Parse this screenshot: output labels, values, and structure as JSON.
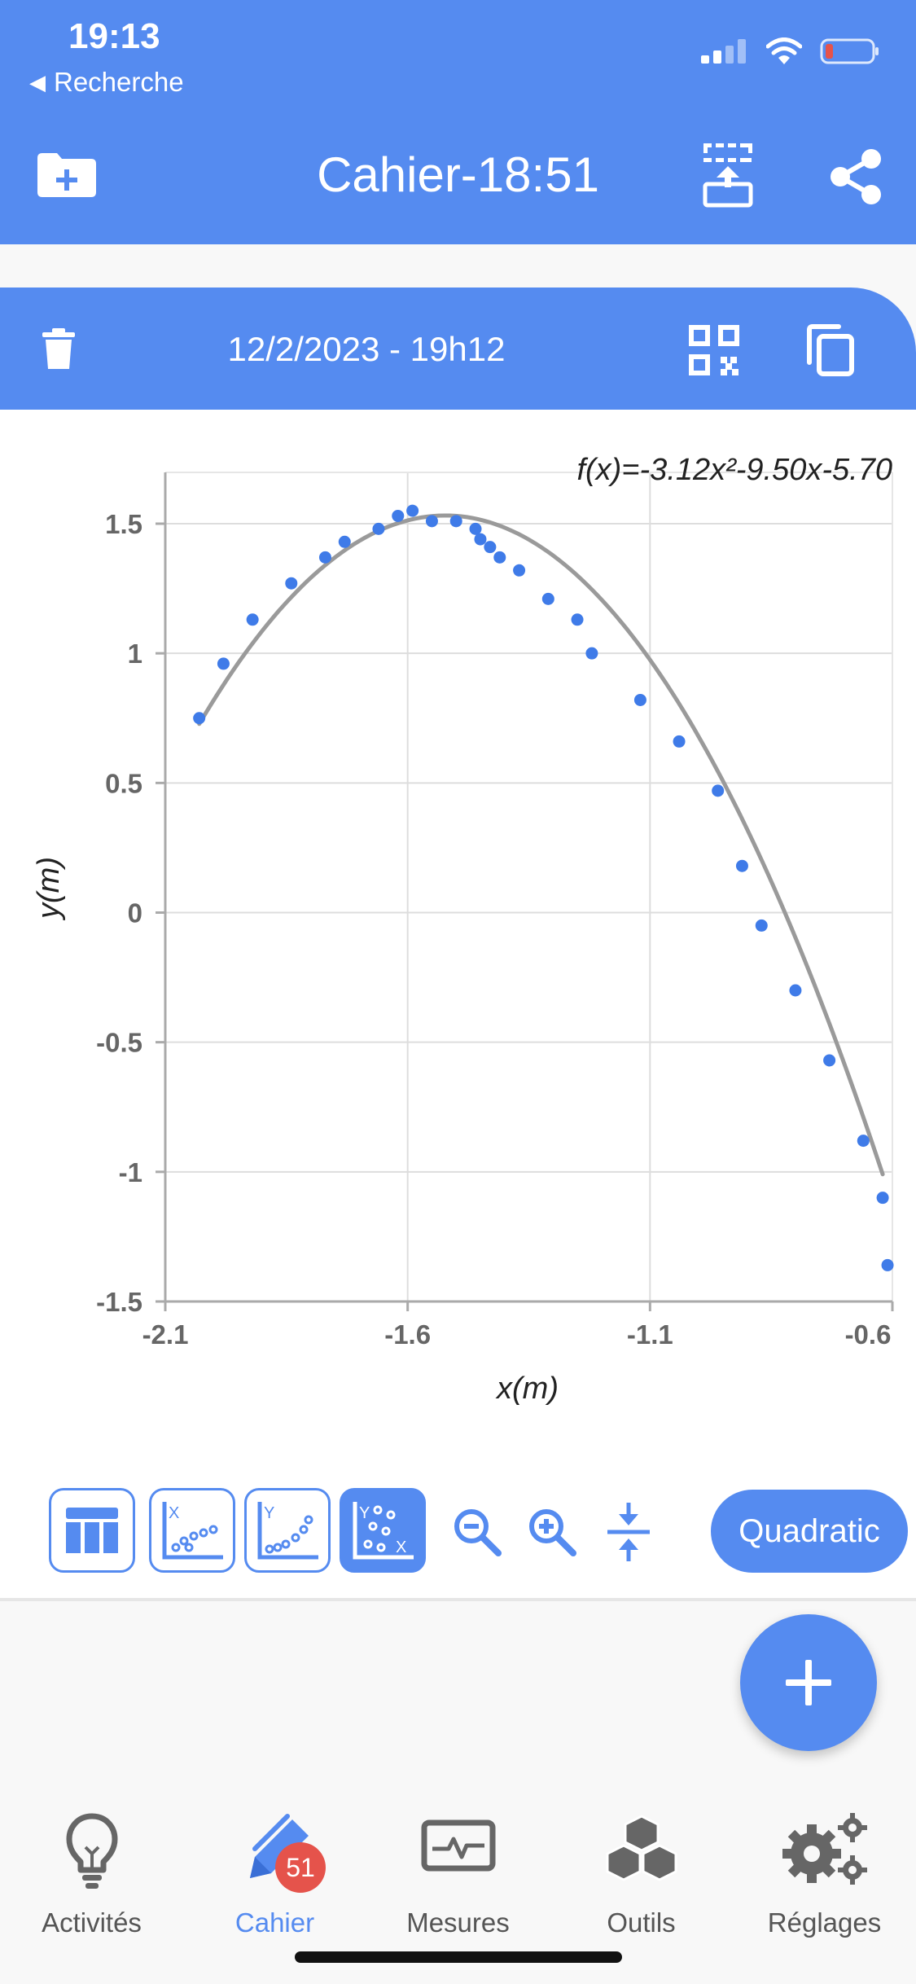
{
  "status": {
    "time": "19:13",
    "back_label": "Recherche",
    "icons": [
      "cellular-signal-icon",
      "wifi-icon",
      "battery-low-icon"
    ]
  },
  "header": {
    "title": "Cahier-18:51",
    "icons": [
      "folder-add-icon",
      "upload-icon",
      "share-icon"
    ]
  },
  "entry": {
    "date": "12/2/2023 - 19h12",
    "icons": [
      "trash-icon",
      "qr-code-icon",
      "copy-icon"
    ]
  },
  "colors": {
    "accent": "#558bf0",
    "point": "#3f7be8",
    "fit_curve": "#9a9a9a",
    "badge": "#e5534b"
  },
  "chart_data": {
    "type": "scatter",
    "equation_label": "f(x)=-3.12x²-9.50x-5.70",
    "xlabel": "x(m)",
    "ylabel": "y(m)",
    "xlim": [
      -2.1,
      -0.6
    ],
    "ylim": [
      -1.5,
      1.7
    ],
    "x_ticks": [
      "-2.1",
      "-1.6",
      "-1.1",
      "-0.6"
    ],
    "y_ticks": [
      "1.5",
      "1",
      "0.5",
      "0",
      "-0.5",
      "-1",
      "-1.5"
    ],
    "grid": true,
    "fit": {
      "model": "quadratic",
      "a": -3.12,
      "b": -9.5,
      "c": -5.7,
      "x_range": [
        -2.03,
        -0.62
      ]
    },
    "points": [
      [
        -2.03,
        0.75
      ],
      [
        -1.98,
        0.96
      ],
      [
        -1.92,
        1.13
      ],
      [
        -1.84,
        1.27
      ],
      [
        -1.77,
        1.37
      ],
      [
        -1.73,
        1.43
      ],
      [
        -1.66,
        1.48
      ],
      [
        -1.62,
        1.53
      ],
      [
        -1.59,
        1.55
      ],
      [
        -1.55,
        1.51
      ],
      [
        -1.5,
        1.51
      ],
      [
        -1.46,
        1.48
      ],
      [
        -1.45,
        1.44
      ],
      [
        -1.43,
        1.41
      ],
      [
        -1.41,
        1.37
      ],
      [
        -1.37,
        1.32
      ],
      [
        -1.31,
        1.21
      ],
      [
        -1.25,
        1.13
      ],
      [
        -1.22,
        1.0
      ],
      [
        -1.12,
        0.82
      ],
      [
        -1.04,
        0.66
      ],
      [
        -0.96,
        0.47
      ],
      [
        -0.91,
        0.18
      ],
      [
        -0.87,
        -0.05
      ],
      [
        -0.8,
        -0.3
      ],
      [
        -0.73,
        -0.57
      ],
      [
        -0.66,
        -0.88
      ],
      [
        -0.62,
        -1.1
      ],
      [
        -0.61,
        -1.36
      ]
    ]
  },
  "toolbar": {
    "tools": [
      {
        "name": "table-view",
        "icon": "table-icon",
        "active": false
      },
      {
        "name": "x-plot",
        "icon": "x-scatter-icon",
        "active": false
      },
      {
        "name": "y-plot",
        "icon": "y-scatter-icon",
        "active": false
      },
      {
        "name": "xy-plot",
        "icon": "xy-scatter-icon",
        "active": true
      }
    ],
    "zoom_icons": [
      "zoom-out-icon",
      "zoom-in-icon",
      "fit-vertical-icon"
    ],
    "fit_label": "Quadratic"
  },
  "fab": {
    "icon": "plus-icon"
  },
  "nav": {
    "items": [
      {
        "label": "Activités",
        "icon": "lightbulb-icon",
        "active": false
      },
      {
        "label": "Cahier",
        "icon": "pencil-icon",
        "active": true,
        "badge": "51"
      },
      {
        "label": "Mesures",
        "icon": "monitor-wave-icon",
        "active": false
      },
      {
        "label": "Outils",
        "icon": "cubes-icon",
        "active": false
      },
      {
        "label": "Réglages",
        "icon": "gears-icon",
        "active": false
      }
    ]
  }
}
